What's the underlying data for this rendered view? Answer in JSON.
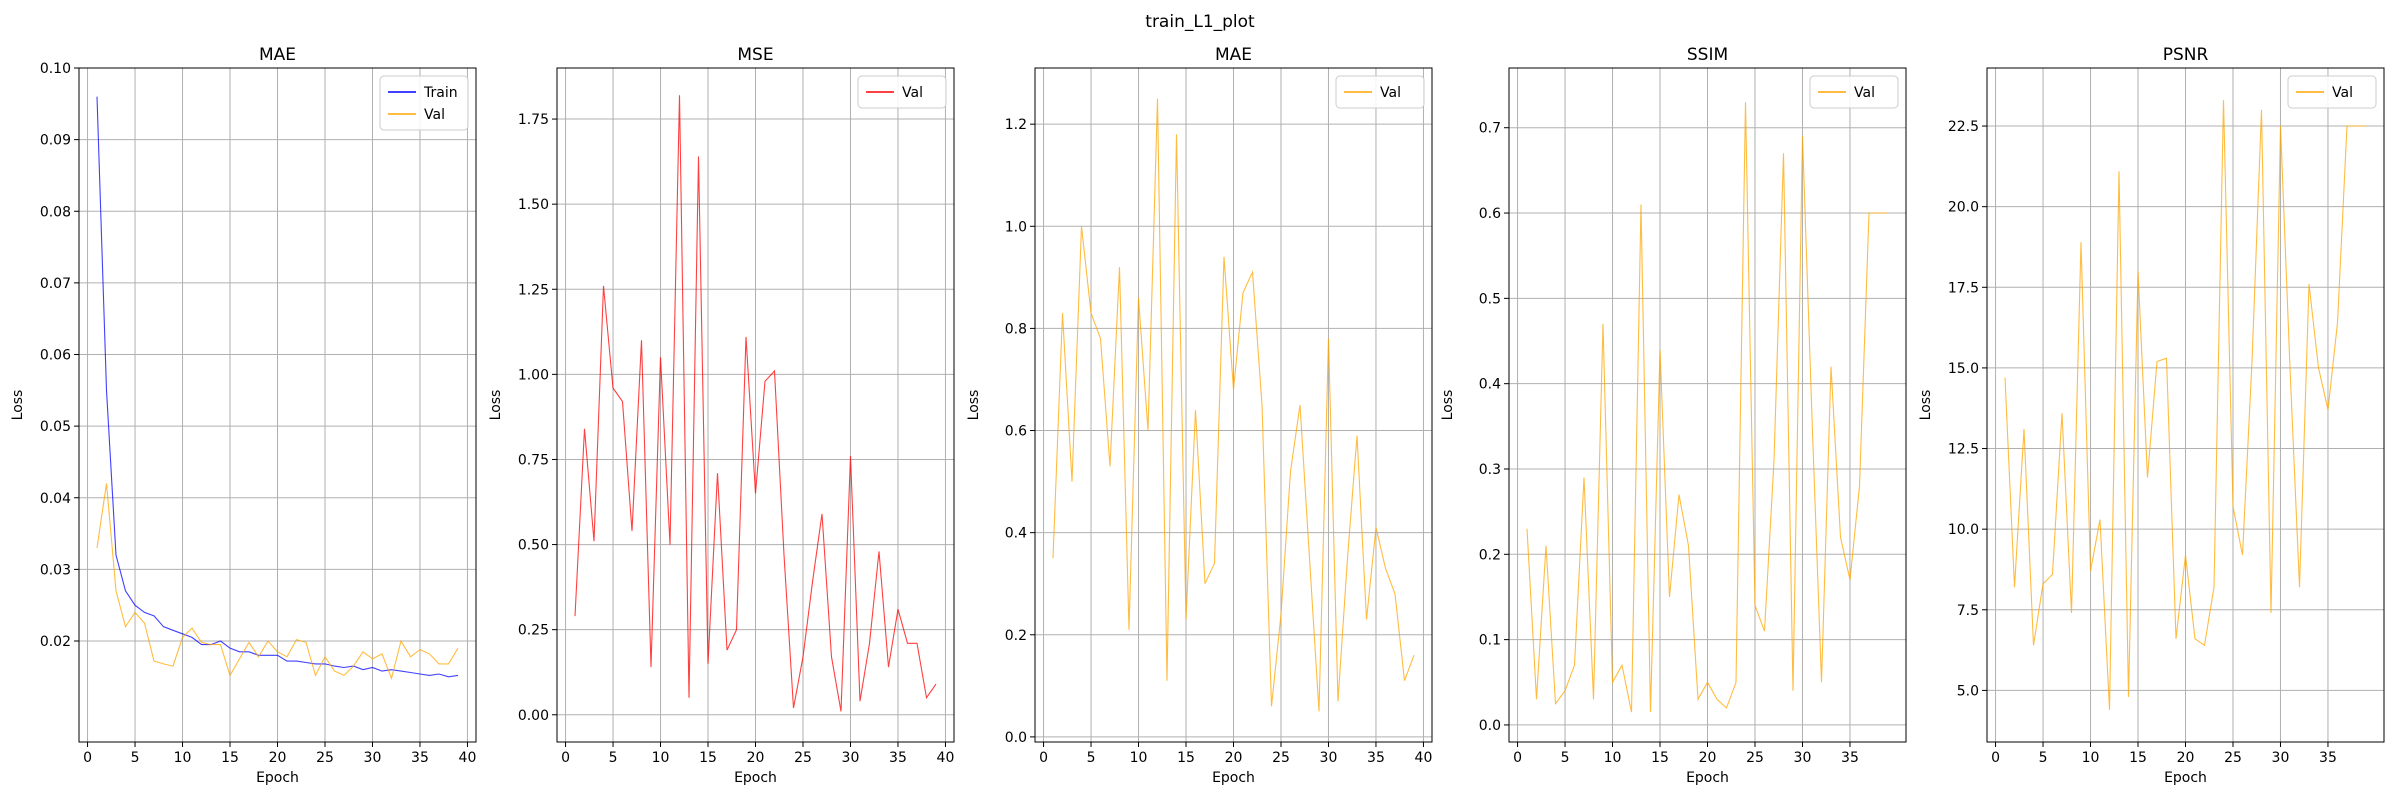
{
  "figure": {
    "title": "train_L1_plot"
  },
  "chart_data": [
    {
      "type": "line",
      "title": "MAE",
      "xlabel": "Epoch",
      "ylabel": "Loss",
      "xlim": [
        -0.9,
        40.9
      ],
      "ylim": [
        0.0059,
        0.1
      ],
      "xticks": [
        0,
        5,
        10,
        15,
        20,
        25,
        30,
        35,
        40
      ],
      "yticks": [
        0.02,
        0.03,
        0.04,
        0.05,
        0.06,
        0.07,
        0.08,
        0.09,
        0.1
      ],
      "ytick_labels": [
        "0.02",
        "0.03",
        "0.04",
        "0.05",
        "0.06",
        "0.07",
        "0.08",
        "0.09",
        "0.10"
      ],
      "grid": true,
      "legend": "top-right",
      "series": [
        {
          "name": "Train",
          "color": "#0000ff",
          "x": [
            1,
            2,
            3,
            4,
            5,
            6,
            7,
            8,
            9,
            10,
            11,
            12,
            13,
            14,
            15,
            16,
            17,
            18,
            19,
            20,
            21,
            22,
            23,
            24,
            25,
            26,
            27,
            28,
            29,
            30,
            31,
            32,
            33,
            34,
            35,
            36,
            37,
            38,
            39
          ],
          "y": [
            0.096,
            0.055,
            0.032,
            0.027,
            0.025,
            0.024,
            0.0235,
            0.022,
            0.0215,
            0.021,
            0.0205,
            0.0195,
            0.0195,
            0.02,
            0.019,
            0.0185,
            0.0185,
            0.018,
            0.018,
            0.018,
            0.0172,
            0.0172,
            0.017,
            0.0168,
            0.0168,
            0.0165,
            0.0163,
            0.0165,
            0.016,
            0.0163,
            0.0158,
            0.016,
            0.0158,
            0.0156,
            0.0154,
            0.0152,
            0.0154,
            0.015,
            0.0152
          ]
        },
        {
          "name": "Val",
          "color": "#ffa500",
          "x": [
            1,
            2,
            3,
            4,
            5,
            6,
            7,
            8,
            9,
            10,
            11,
            12,
            13,
            14,
            15,
            16,
            17,
            18,
            19,
            20,
            21,
            22,
            23,
            24,
            25,
            26,
            27,
            28,
            29,
            30,
            31,
            32,
            33,
            34,
            35,
            36,
            37,
            38,
            39
          ],
          "y": [
            0.033,
            0.042,
            0.027,
            0.022,
            0.024,
            0.0225,
            0.0172,
            0.0168,
            0.0165,
            0.0205,
            0.0218,
            0.0198,
            0.0195,
            0.0195,
            0.0152,
            0.0175,
            0.0198,
            0.0178,
            0.02,
            0.0185,
            0.0178,
            0.0202,
            0.0198,
            0.0152,
            0.0178,
            0.0158,
            0.0152,
            0.0165,
            0.0185,
            0.0175,
            0.0182,
            0.0148,
            0.02,
            0.0178,
            0.0188,
            0.0182,
            0.0168,
            0.0168,
            0.019
          ]
        }
      ]
    },
    {
      "type": "line",
      "title": "MSE",
      "xlabel": "Epoch",
      "ylabel": "Loss",
      "xlim": [
        -0.9,
        40.9
      ],
      "ylim": [
        -0.08,
        1.9
      ],
      "xticks": [
        0,
        5,
        10,
        15,
        20,
        25,
        30,
        35,
        40
      ],
      "yticks": [
        0,
        0.25,
        0.5,
        0.75,
        1.0,
        1.25,
        1.5,
        1.75
      ],
      "ytick_labels": [
        "0.00",
        "0.25",
        "0.50",
        "0.75",
        "1.00",
        "1.25",
        "1.50",
        "1.75"
      ],
      "grid": true,
      "legend": "top-right",
      "series": [
        {
          "name": "Val",
          "color": "#ff0000",
          "x": [
            1,
            2,
            3,
            4,
            5,
            6,
            7,
            8,
            9,
            10,
            11,
            12,
            13,
            14,
            15,
            16,
            17,
            18,
            19,
            20,
            21,
            22,
            23,
            24,
            25,
            26,
            27,
            28,
            29,
            30,
            31,
            32,
            33,
            34,
            35,
            36,
            37,
            38,
            39
          ],
          "y": [
            0.29,
            0.84,
            0.51,
            1.26,
            0.96,
            0.92,
            0.54,
            1.1,
            0.14,
            1.05,
            0.5,
            1.82,
            0.05,
            1.64,
            0.15,
            0.71,
            0.19,
            0.25,
            1.11,
            0.65,
            0.98,
            1.01,
            0.47,
            0.02,
            0.17,
            0.39,
            0.59,
            0.17,
            0.01,
            0.76,
            0.04,
            0.21,
            0.48,
            0.14,
            0.31,
            0.21,
            0.21,
            0.05,
            0.09
          ]
        }
      ]
    },
    {
      "type": "line",
      "title": "MAE",
      "xlabel": "Epoch",
      "ylabel": "Loss",
      "xlim": [
        -0.9,
        40.9
      ],
      "ylim": [
        -0.01,
        1.31
      ],
      "xticks": [
        0,
        5,
        10,
        15,
        20,
        25,
        30,
        35,
        40
      ],
      "yticks": [
        0,
        0.2,
        0.4,
        0.6,
        0.8,
        1.0,
        1.2
      ],
      "ytick_labels": [
        "0.0",
        "0.2",
        "0.4",
        "0.6",
        "0.8",
        "1.0",
        "1.2"
      ],
      "grid": true,
      "legend": "top-right",
      "series": [
        {
          "name": "Val",
          "color": "#ffa500",
          "x": [
            1,
            2,
            3,
            4,
            5,
            6,
            7,
            8,
            9,
            10,
            11,
            12,
            13,
            14,
            15,
            16,
            17,
            18,
            19,
            20,
            21,
            22,
            23,
            24,
            25,
            26,
            27,
            28,
            29,
            30,
            31,
            32,
            33,
            34,
            35,
            36,
            37,
            38,
            39
          ],
          "y": [
            0.35,
            0.83,
            0.5,
            1.0,
            0.83,
            0.78,
            0.53,
            0.92,
            0.21,
            0.86,
            0.6,
            1.25,
            0.11,
            1.18,
            0.23,
            0.64,
            0.3,
            0.34,
            0.94,
            0.68,
            0.87,
            0.91,
            0.65,
            0.06,
            0.24,
            0.52,
            0.65,
            0.35,
            0.05,
            0.78,
            0.07,
            0.35,
            0.59,
            0.23,
            0.41,
            0.33,
            0.28,
            0.11,
            0.16
          ]
        }
      ]
    },
    {
      "type": "line",
      "title": "SSIM",
      "xlabel": "Epoch",
      "ylabel": "Loss",
      "xlim": [
        -0.9,
        40.9
      ],
      "ylim": [
        -0.02,
        0.77
      ],
      "xticks": [
        0,
        5,
        10,
        15,
        20,
        25,
        30,
        35
      ],
      "yticks": [
        0,
        0.1,
        0.2,
        0.3,
        0.4,
        0.5,
        0.6,
        0.7
      ],
      "ytick_labels": [
        "0.0",
        "0.1",
        "0.2",
        "0.3",
        "0.4",
        "0.5",
        "0.6",
        "0.7"
      ],
      "grid": true,
      "legend": "top-right",
      "series": [
        {
          "name": "Val",
          "color": "#ffa500",
          "x": [
            1,
            2,
            3,
            4,
            5,
            6,
            7,
            8,
            9,
            10,
            11,
            12,
            13,
            14,
            15,
            16,
            17,
            18,
            19,
            20,
            21,
            22,
            23,
            24,
            25,
            26,
            27,
            28,
            29,
            30,
            31,
            32,
            33,
            34,
            35,
            36,
            37,
            38,
            39
          ],
          "y": [
            0.23,
            0.03,
            0.21,
            0.025,
            0.04,
            0.07,
            0.29,
            0.03,
            0.47,
            0.05,
            0.07,
            0.015,
            0.61,
            0.015,
            0.44,
            0.15,
            0.27,
            0.21,
            0.03,
            0.05,
            0.03,
            0.02,
            0.05,
            0.73,
            0.14,
            0.11,
            0.31,
            0.67,
            0.04,
            0.69,
            0.36,
            0.05,
            0.42,
            0.22,
            0.17,
            0.28,
            0.6,
            0.6,
            0.6
          ]
        }
      ]
    },
    {
      "type": "line",
      "title": "PSNR",
      "xlabel": "Epoch",
      "ylabel": "Loss",
      "xlim": [
        -0.9,
        40.9
      ],
      "ylim": [
        3.4,
        24.3
      ],
      "xticks": [
        0,
        5,
        10,
        15,
        20,
        25,
        30,
        35
      ],
      "yticks": [
        5,
        7.5,
        10,
        12.5,
        15,
        17.5,
        20,
        22.5
      ],
      "ytick_labels": [
        "5.0",
        "7.5",
        "10.0",
        "12.5",
        "15.0",
        "17.5",
        "20.0",
        "22.5"
      ],
      "grid": true,
      "legend": "top-right",
      "series": [
        {
          "name": "Val",
          "color": "#ffa500",
          "x": [
            1,
            2,
            3,
            4,
            5,
            6,
            7,
            8,
            9,
            10,
            11,
            12,
            13,
            14,
            15,
            16,
            17,
            18,
            19,
            20,
            21,
            22,
            23,
            24,
            25,
            26,
            27,
            28,
            29,
            30,
            31,
            32,
            33,
            34,
            35,
            36,
            37,
            38,
            39
          ],
          "y": [
            14.7,
            8.2,
            13.1,
            6.4,
            8.3,
            8.6,
            13.6,
            7.4,
            18.9,
            8.7,
            10.3,
            4.4,
            21.1,
            4.8,
            18.0,
            11.6,
            15.2,
            15.3,
            6.6,
            9.2,
            6.6,
            6.4,
            8.2,
            23.3,
            10.7,
            9.2,
            15.2,
            23.0,
            7.4,
            22.5,
            15.0,
            8.2,
            17.6,
            15.0,
            13.7,
            16.4,
            22.5,
            22.5,
            22.5
          ]
        }
      ]
    }
  ]
}
